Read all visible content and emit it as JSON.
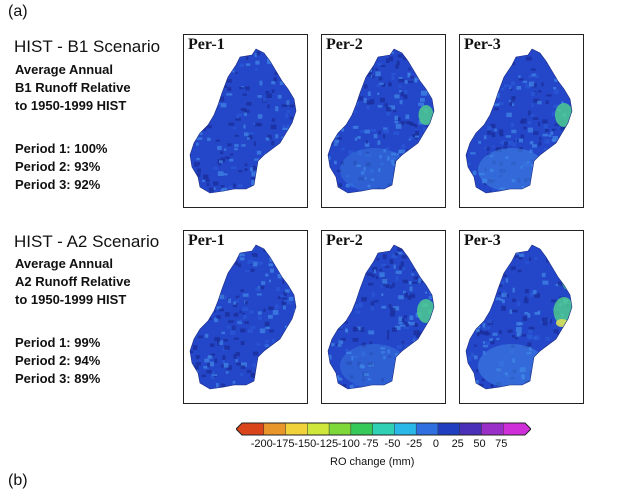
{
  "figure": {
    "panel_label": "(a)",
    "bottom_label": "(b)"
  },
  "rows": [
    {
      "title": "HIST - B1 Scenario",
      "subtitle_lines": [
        "Average Annual",
        "B1 Runoff Relative",
        "to 1950-1999 HIST"
      ],
      "periods": [
        "Period 1: 100%",
        "Period 2: 93%",
        "Period 3: 92%"
      ],
      "map_titles": [
        "Per-1",
        "Per-2",
        "Per-3"
      ]
    },
    {
      "title": "HIST - A2 Scenario",
      "subtitle_lines": [
        "Average Annual",
        "A2 Runoff Relative",
        "to 1950-1999 HIST"
      ],
      "periods": [
        "Period 1: 99%",
        "Period 2: 94%",
        "Period 3: 89%"
      ],
      "map_titles": [
        "Per-1",
        "Per-2",
        "Per-3"
      ]
    }
  ],
  "colorbar": {
    "label": "RO change (mm)",
    "ticks": [
      "-200",
      "-175",
      "-150",
      "-125",
      "-100",
      "-75",
      "-50",
      "-25",
      "0",
      "25",
      "50",
      "75"
    ],
    "colors": [
      "#d9441a",
      "#e8952a",
      "#f1d23a",
      "#cfe73a",
      "#7fd83a",
      "#35c95a",
      "#2fd0b4",
      "#2ab8e8",
      "#2f6fe0",
      "#1f3fc0",
      "#4a2fb8",
      "#9a2fc8",
      "#cf2fd8"
    ]
  },
  "maps": {
    "base_color": "#2446c9",
    "dark_color": "#1a2d9a",
    "light_color": "#3f86e6",
    "highlight_green": "#4fd38c",
    "highlight_yellow": "#d8de5a"
  }
}
